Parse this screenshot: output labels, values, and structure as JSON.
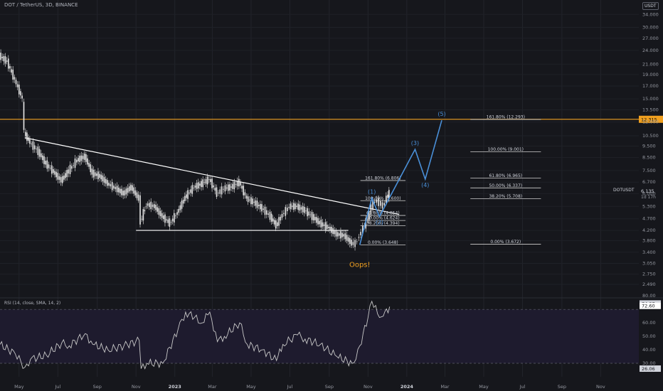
{
  "header": {
    "symbol": "DOT / TetherUS, 3D, BINANCE",
    "currency_badge": "USDT"
  },
  "rsi_header": "RSI (14, close, SMA, 14, 2)",
  "colors": {
    "background": "#16171c",
    "candle": "#e8e8e8",
    "wave": "#4a90d9",
    "resistance": "#f0a020",
    "oops": "#f0a020",
    "rsi_line": "#c8c8c8"
  },
  "chart_data": [
    {
      "type": "candlestick",
      "title": "DOT / TetherUS, 3D, BINANCE",
      "y_scale": "log",
      "ylim": [
        2.2,
        37
      ],
      "y_ticks": [
        "34.000",
        "30.000",
        "27.000",
        "24.000",
        "21.000",
        "19.000",
        "17.000",
        "15.000",
        "13.500",
        "12.000",
        "10.500",
        "9.500",
        "8.500",
        "7.500",
        "6.700",
        "6.000",
        "5.300",
        "4.700",
        "4.200",
        "3.800",
        "3.400",
        "3.050",
        "2.750",
        "2.490"
      ],
      "x_ticks": [
        "May",
        "Jul",
        "Sep",
        "Nov",
        "2023",
        "Mar",
        "May",
        "Jul",
        "Sep",
        "Nov",
        "2024",
        "Mar",
        "May",
        "Jul",
        "Sep",
        "Nov"
      ],
      "price_series": {
        "x": [
          "2022-04-01",
          "2022-04-13",
          "2022-04-25",
          "2022-05-07",
          "2022-05-10",
          "2022-05-19",
          "2022-06-01",
          "2022-06-13",
          "2022-06-25",
          "2022-07-07",
          "2022-07-19",
          "2022-08-01",
          "2022-08-13",
          "2022-08-25",
          "2022-09-06",
          "2022-09-18",
          "2022-10-01",
          "2022-10-13",
          "2022-10-25",
          "2022-11-06",
          "2022-11-09",
          "2022-11-18",
          "2022-12-01",
          "2022-12-13",
          "2022-12-25",
          "2023-01-06",
          "2023-01-18",
          "2023-02-01",
          "2023-02-13",
          "2023-02-25",
          "2023-03-09",
          "2023-03-20",
          "2023-04-01",
          "2023-04-13",
          "2023-04-25",
          "2023-05-07",
          "2023-05-19",
          "2023-06-01",
          "2023-06-10",
          "2023-06-20",
          "2023-07-01",
          "2023-07-13",
          "2023-07-25",
          "2023-08-06",
          "2023-08-18",
          "2023-09-01",
          "2023-09-13",
          "2023-09-25",
          "2023-10-07",
          "2023-10-13",
          "2023-10-19",
          "2023-10-25",
          "2023-11-01",
          "2023-11-07",
          "2023-11-13",
          "2023-11-19",
          "2023-11-25",
          "2023-12-01",
          "2023-12-05"
        ],
        "close": [
          22.8,
          21.5,
          18.0,
          15.0,
          10.8,
          9.8,
          9.0,
          8.0,
          7.4,
          6.8,
          7.5,
          8.3,
          8.6,
          7.3,
          7.1,
          6.6,
          6.3,
          6.0,
          6.4,
          5.7,
          4.6,
          5.4,
          5.3,
          4.8,
          4.5,
          5.0,
          5.8,
          6.4,
          6.6,
          6.9,
          6.0,
          6.3,
          6.4,
          6.7,
          5.7,
          5.5,
          5.2,
          4.8,
          4.4,
          4.9,
          5.3,
          5.3,
          5.1,
          4.8,
          4.5,
          4.3,
          4.05,
          4.0,
          3.7,
          3.7,
          4.0,
          4.3,
          4.7,
          5.3,
          5.6,
          5.5,
          5.3,
          5.8,
          6.0
        ]
      },
      "horizontal_levels": [
        {
          "name": "resistance",
          "value": 12.315,
          "label": "12.315"
        },
        {
          "name": "support",
          "value": 4.2,
          "from": "2022-11-01",
          "to": "2023-10-01"
        }
      ],
      "trendline": {
        "from": {
          "x": "2022-05-10",
          "y": 10.3
        },
        "to": {
          "x": "2023-12-20",
          "y": 4.9
        }
      },
      "last_price": {
        "value": "6.135",
        "symbol": "DOTUSDT",
        "countdown": "1d 17h"
      },
      "fib_levels_left": {
        "x_from": "2023-10-20",
        "x_to": "2023-12-30",
        "levels": [
          {
            "ratio": "161.80%",
            "price": 6.806,
            "label": "161.80% (6.806)"
          },
          {
            "ratio": "100.00%",
            "price": 5.6,
            "label": "100.00% (5.600)"
          },
          {
            "ratio": "61.80%",
            "price": 4.854,
            "label": "61.80% (4.854)"
          },
          {
            "ratio": "50.00%",
            "price": 4.624,
            "label": "50.00% (4.624)"
          },
          {
            "ratio": "38.20%",
            "price": 4.394,
            "label": "38.20% (4.394)"
          },
          {
            "ratio": "0.00%",
            "price": 3.648,
            "label": "0.00% (3.648)"
          }
        ]
      },
      "fib_levels_right": {
        "x_from": "2024-04-10",
        "x_to": "2024-07-30",
        "levels": [
          {
            "ratio": "161.80%",
            "price": 12.293,
            "label": "161.80% (12.293)"
          },
          {
            "ratio": "100.00%",
            "price": 9.001,
            "label": "100.00% (9.001)"
          },
          {
            "ratio": "61.80%",
            "price": 6.965,
            "label": "61.80% (6.965)"
          },
          {
            "ratio": "50.00%",
            "price": 6.337,
            "label": "50.00% (6.337)"
          },
          {
            "ratio": "38.20%",
            "price": 5.708,
            "label": "38.20% (5.708)"
          },
          {
            "ratio": "0.00%",
            "price": 3.672,
            "label": "0.00% (3.672)"
          }
        ]
      },
      "elliott_wave": {
        "points": [
          {
            "label": "",
            "x": "2023-10-19",
            "y": 3.65
          },
          {
            "label": "(1)",
            "x": "2023-11-07",
            "y": 5.75
          },
          {
            "label": "(2)",
            "x": "2023-11-19",
            "y": 4.8
          },
          {
            "label": "(3)",
            "x": "2024-01-14",
            "y": 9.2
          },
          {
            "label": "(4)",
            "x": "2024-01-30",
            "y": 6.9
          },
          {
            "label": "(5)",
            "x": "2024-02-25",
            "y": 12.2
          }
        ]
      },
      "annotations": [
        {
          "text": "Oops!",
          "x": "2023-10-19",
          "y": 3.25
        }
      ]
    },
    {
      "type": "line",
      "title": "RSI (14, close, SMA, 14, 2)",
      "ylim": [
        20,
        78
      ],
      "y_ticks": [
        "80.00",
        "60.00",
        "50.00",
        "40.00",
        "30.00"
      ],
      "guide_levels": [
        70,
        30
      ],
      "series": [
        {
          "name": "RSI",
          "x": [
            "2022-04-01",
            "2022-04-25",
            "2022-05-10",
            "2022-05-19",
            "2022-06-13",
            "2022-07-07",
            "2022-07-19",
            "2022-08-13",
            "2022-08-25",
            "2022-09-18",
            "2022-10-13",
            "2022-11-06",
            "2022-11-09",
            "2022-11-18",
            "2022-12-13",
            "2023-01-06",
            "2023-01-18",
            "2023-02-01",
            "2023-02-13",
            "2023-02-25",
            "2023-03-09",
            "2023-03-20",
            "2023-04-13",
            "2023-04-25",
            "2023-05-19",
            "2023-06-10",
            "2023-06-20",
            "2023-07-13",
            "2023-07-25",
            "2023-08-18",
            "2023-09-13",
            "2023-10-07",
            "2023-10-13",
            "2023-10-19",
            "2023-11-01",
            "2023-11-07",
            "2023-11-19",
            "2023-11-25",
            "2023-12-05"
          ],
          "values": [
            44,
            37,
            27,
            33,
            36,
            45,
            43,
            52,
            44,
            40,
            43,
            47,
            26,
            30,
            30,
            55,
            68,
            64,
            60,
            68,
            46,
            50,
            60,
            44,
            40,
            32,
            44,
            51,
            48,
            44,
            35,
            30,
            33,
            43,
            64,
            76,
            64,
            65,
            72
          ]
        },
        {
          "name": "RSI-based MA",
          "values": []
        }
      ],
      "last_values": {
        "rsi": "72.60",
        "ma": "74.37",
        "lower": "26.06"
      }
    }
  ]
}
